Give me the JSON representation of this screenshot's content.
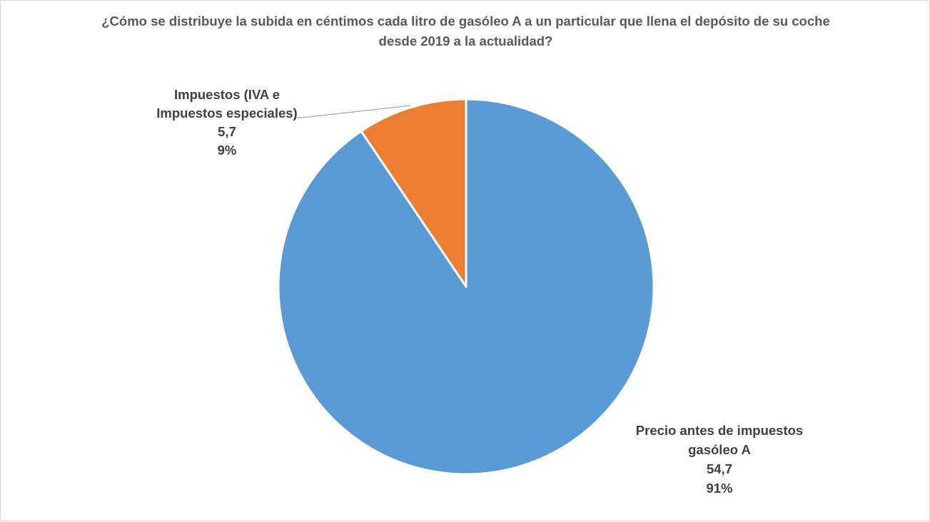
{
  "chart_data": {
    "type": "pie",
    "title": "¿Cómo se distribuye la subida en céntimos cada litro de gasóleo A a un particular que llena el depósito de su coche desde 2019 a la actualidad?",
    "categories": [
      "Impuestos (IVA e Impuestos especiales)",
      "Precio antes de impuestos gasóleo A"
    ],
    "values": [
      5.7,
      54.7
    ],
    "value_labels": [
      "5,7",
      "54,7"
    ],
    "percent_labels": [
      "9%",
      "91%"
    ],
    "label_lines": [
      [
        "Impuestos (IVA e",
        "Impuestos especiales)"
      ],
      [
        "Precio antes de impuestos",
        "gasóleo A"
      ]
    ],
    "colors": [
      "#ED7D31",
      "#5B9BD5"
    ],
    "legend": "none"
  }
}
